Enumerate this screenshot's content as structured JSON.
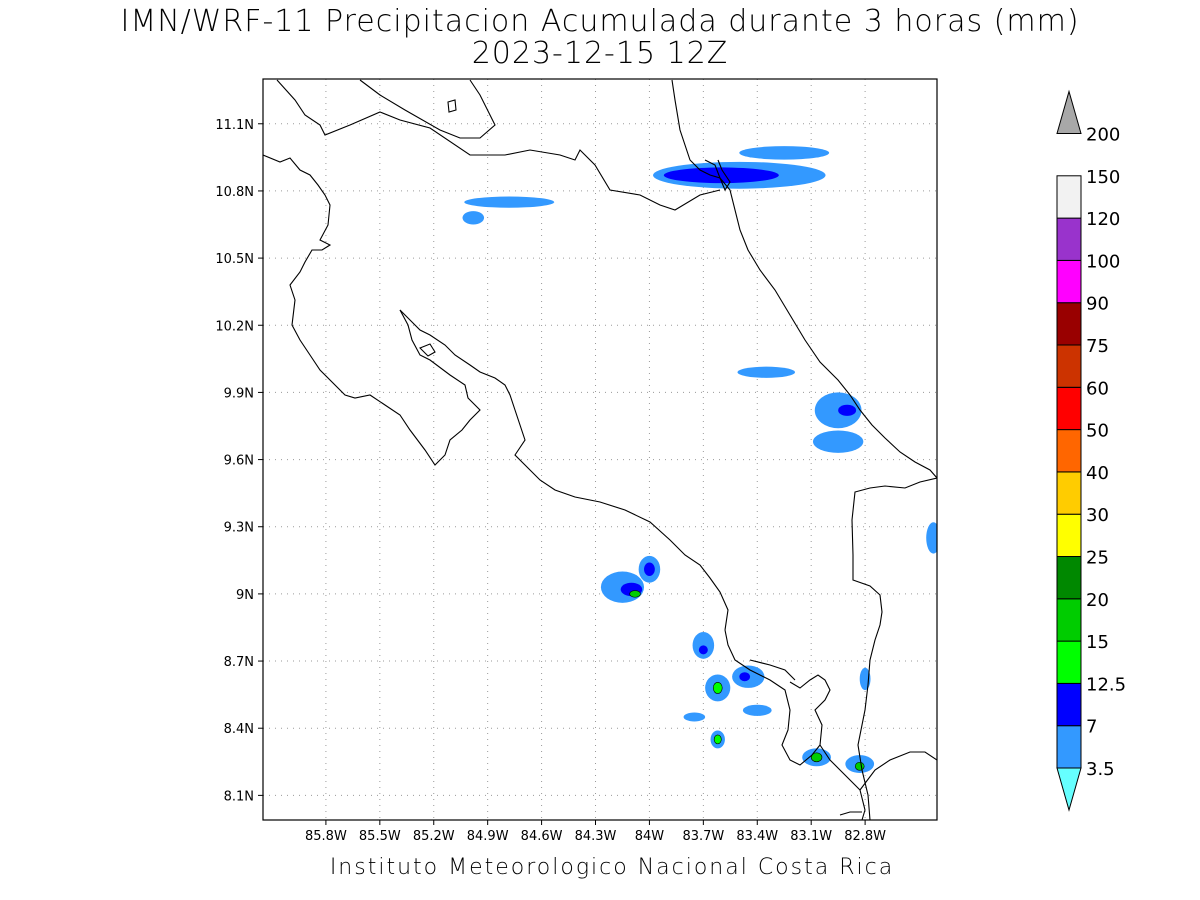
{
  "title": {
    "line1": "IMN/WRF-11 Precipitacion Acumulada durante 3 horas (mm)",
    "line2": "2023-12-15 12Z"
  },
  "credit": "Instituto Meteorologico Nacional Costa Rica",
  "map": {
    "type": "precipitation-map",
    "lon_range": [
      -86.15,
      -82.4
    ],
    "lat_range": [
      7.99,
      11.3
    ],
    "grid": "dotted",
    "lat_ticks": [
      {
        "value": 11.1,
        "label": "11.1N"
      },
      {
        "value": 10.8,
        "label": "10.8N"
      },
      {
        "value": 10.5,
        "label": "10.5N"
      },
      {
        "value": 10.2,
        "label": "10.2N"
      },
      {
        "value": 9.9,
        "label": "9.9N"
      },
      {
        "value": 9.6,
        "label": "9.6N"
      },
      {
        "value": 9.3,
        "label": "9.3N"
      },
      {
        "value": 9.0,
        "label": "9N"
      },
      {
        "value": 8.7,
        "label": "8.7N"
      },
      {
        "value": 8.4,
        "label": "8.4N"
      },
      {
        "value": 8.1,
        "label": "8.1N"
      }
    ],
    "lon_ticks": [
      {
        "value": -85.8,
        "label": "85.8W"
      },
      {
        "value": -85.5,
        "label": "85.5W"
      },
      {
        "value": -85.2,
        "label": "85.2W"
      },
      {
        "value": -84.9,
        "label": "84.9W"
      },
      {
        "value": -84.6,
        "label": "84.6W"
      },
      {
        "value": -84.3,
        "label": "84.3W"
      },
      {
        "value": -84.0,
        "label": "84W"
      },
      {
        "value": -83.7,
        "label": "83.7W"
      },
      {
        "value": -83.4,
        "label": "83.4W"
      },
      {
        "value": -83.1,
        "label": "83.1W"
      },
      {
        "value": -82.8,
        "label": "82.8W"
      }
    ],
    "colorbar": [
      {
        "label": "3.5",
        "color": "#66ffff"
      },
      {
        "label": "7",
        "color": "#3399ff"
      },
      {
        "label": "12.5",
        "color": "#0000ff"
      },
      {
        "label": "15",
        "color": "#00ff00"
      },
      {
        "label": "20",
        "color": "#00cc00"
      },
      {
        "label": "25",
        "color": "#008800"
      },
      {
        "label": "30",
        "color": "#ffff00"
      },
      {
        "label": "40",
        "color": "#ffcc00"
      },
      {
        "label": "50",
        "color": "#ff6600"
      },
      {
        "label": "60",
        "color": "#ff0000"
      },
      {
        "label": "75",
        "color": "#cc3300"
      },
      {
        "label": "90",
        "color": "#990000"
      },
      {
        "label": "100",
        "color": "#ff00ff"
      },
      {
        "label": "120",
        "color": "#9933cc"
      },
      {
        "label": "150",
        "color": "#f2f2f2"
      },
      {
        "label": "200",
        "color": "#a8a8a8"
      }
    ],
    "precip_cells": [
      {
        "lon": -83.5,
        "lat": 10.87,
        "rx": 0.48,
        "ry": 0.06,
        "level": 1
      },
      {
        "lon": -83.6,
        "lat": 10.87,
        "rx": 0.32,
        "ry": 0.035,
        "level": 2
      },
      {
        "lon": -83.25,
        "lat": 10.97,
        "rx": 0.25,
        "ry": 0.03,
        "level": 1
      },
      {
        "lon": -84.78,
        "lat": 10.75,
        "rx": 0.25,
        "ry": 0.025,
        "level": 1
      },
      {
        "lon": -84.98,
        "lat": 10.68,
        "rx": 0.06,
        "ry": 0.03,
        "level": 1
      },
      {
        "lon": -83.35,
        "lat": 9.99,
        "rx": 0.16,
        "ry": 0.025,
        "level": 1
      },
      {
        "lon": -82.95,
        "lat": 9.82,
        "rx": 0.13,
        "ry": 0.08,
        "level": 1
      },
      {
        "lon": -82.9,
        "lat": 9.82,
        "rx": 0.05,
        "ry": 0.025,
        "level": 2
      },
      {
        "lon": -82.95,
        "lat": 9.68,
        "rx": 0.14,
        "ry": 0.05,
        "level": 1
      },
      {
        "lon": -84.15,
        "lat": 9.03,
        "rx": 0.12,
        "ry": 0.07,
        "level": 1
      },
      {
        "lon": -84.1,
        "lat": 9.02,
        "rx": 0.06,
        "ry": 0.03,
        "level": 2
      },
      {
        "lon": -84.08,
        "lat": 9.0,
        "rx": 0.03,
        "ry": 0.015,
        "level": 4
      },
      {
        "lon": -84.0,
        "lat": 9.11,
        "rx": 0.06,
        "ry": 0.06,
        "level": 1
      },
      {
        "lon": -84.0,
        "lat": 9.11,
        "rx": 0.03,
        "ry": 0.03,
        "level": 2
      },
      {
        "lon": -83.7,
        "lat": 8.77,
        "rx": 0.06,
        "ry": 0.06,
        "level": 1
      },
      {
        "lon": -83.7,
        "lat": 8.75,
        "rx": 0.025,
        "ry": 0.02,
        "level": 2
      },
      {
        "lon": -83.62,
        "lat": 8.58,
        "rx": 0.07,
        "ry": 0.06,
        "level": 1
      },
      {
        "lon": -83.62,
        "lat": 8.58,
        "rx": 0.025,
        "ry": 0.025,
        "level": 3
      },
      {
        "lon": -83.45,
        "lat": 8.63,
        "rx": 0.09,
        "ry": 0.05,
        "level": 1
      },
      {
        "lon": -83.47,
        "lat": 8.63,
        "rx": 0.03,
        "ry": 0.02,
        "level": 2
      },
      {
        "lon": -83.62,
        "lat": 8.35,
        "rx": 0.04,
        "ry": 0.04,
        "level": 1
      },
      {
        "lon": -83.62,
        "lat": 8.35,
        "rx": 0.02,
        "ry": 0.02,
        "level": 3
      },
      {
        "lon": -83.07,
        "lat": 8.27,
        "rx": 0.08,
        "ry": 0.04,
        "level": 1
      },
      {
        "lon": -83.07,
        "lat": 8.27,
        "rx": 0.03,
        "ry": 0.02,
        "level": 4
      },
      {
        "lon": -82.83,
        "lat": 8.24,
        "rx": 0.08,
        "ry": 0.04,
        "level": 1
      },
      {
        "lon": -82.83,
        "lat": 8.23,
        "rx": 0.025,
        "ry": 0.018,
        "level": 4
      },
      {
        "lon": -83.75,
        "lat": 8.45,
        "rx": 0.06,
        "ry": 0.02,
        "level": 1
      },
      {
        "lon": -83.4,
        "lat": 8.48,
        "rx": 0.08,
        "ry": 0.025,
        "level": 1
      },
      {
        "lon": -82.8,
        "lat": 8.62,
        "rx": 0.03,
        "ry": 0.05,
        "level": 1
      },
      {
        "lon": -82.42,
        "lat": 9.25,
        "rx": 0.04,
        "ry": 0.07,
        "level": 1
      }
    ]
  }
}
